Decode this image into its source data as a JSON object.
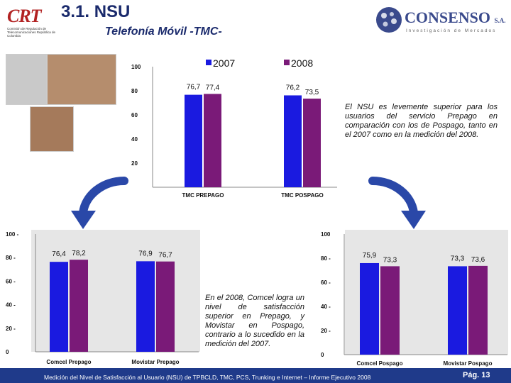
{
  "header": {
    "crt_logo_text": "CRT",
    "crt_logo_subtext": "Comisión de Regulación de Telecomunicaciones República de Colombia",
    "section_title": "3.1. NSU",
    "subtitle": "Telefonía Móvil -TMC-",
    "consenso_name": "CONSENSO",
    "consenso_suffix": "S.A.",
    "consenso_tagline": "Investigación de Mercados"
  },
  "notes": {
    "top_right": "El NSU es levemente superior para los usuarios del servicio Prepago en comparación con los de Pospago, tanto en el 2007 como en la medición del 2008.",
    "bottom_middle": "En el 2008, Comcel logra un nivel de satisfacción superior en Prepago, y Movistar en Pospago, contrario a lo sucedido en la medición del 2007."
  },
  "footer": {
    "text": "Medición del Nivel de Satisfacción al Usuario (NSU) de TPBCLD, TMC, PCS, Trunking e Internet – Informe Ejecutivo 2008",
    "page": "Pág. 13"
  },
  "colors": {
    "series_2007": "#1a1ae0",
    "series_2008": "#7a1a78",
    "footer": "#1f3a8a"
  },
  "chart_data": [
    {
      "type": "bar",
      "title": "",
      "categories": [
        "TMC PREPAGO",
        "TMC POSPAGO"
      ],
      "series": [
        {
          "name": "2007",
          "values": [
            76.7,
            76.2
          ],
          "labels": [
            "76,7",
            "76,2"
          ]
        },
        {
          "name": "2008",
          "values": [
            77.4,
            73.5
          ],
          "labels": [
            "77,4",
            "73,5"
          ]
        }
      ],
      "yticks": [
        "100",
        "80",
        "60",
        "40",
        "20"
      ],
      "ylim": [
        0,
        100
      ]
    },
    {
      "type": "bar",
      "title": "",
      "categories": [
        "Comcel Prepago",
        "Movistar Prepago"
      ],
      "series": [
        {
          "name": "2007",
          "values": [
            76.4,
            76.9
          ],
          "labels": [
            "76,4",
            "76,9"
          ]
        },
        {
          "name": "2008",
          "values": [
            78.2,
            76.7
          ],
          "labels": [
            "78,2",
            "76,7"
          ]
        }
      ],
      "yticks": [
        "100 -",
        "80 -",
        "60 -",
        "40 -",
        "20 -",
        "0"
      ],
      "ylim": [
        0,
        100
      ]
    },
    {
      "type": "bar",
      "title": "",
      "categories": [
        "Comcel Pospago",
        "Movistar Pospago"
      ],
      "series": [
        {
          "name": "2007",
          "values": [
            75.9,
            73.3
          ],
          "labels": [
            "75,9",
            "73,3"
          ]
        },
        {
          "name": "2008",
          "values": [
            73.3,
            73.6
          ],
          "labels": [
            "73,3",
            "73,6"
          ]
        }
      ],
      "yticks": [
        "100",
        "80 -",
        "60 -",
        "40 -",
        "20 -",
        "0"
      ],
      "ylim": [
        0,
        100
      ]
    }
  ]
}
